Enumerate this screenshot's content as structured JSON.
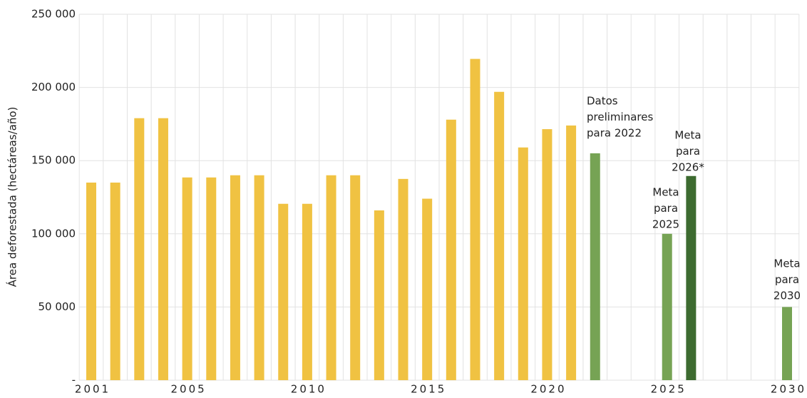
{
  "chart_data": {
    "type": "bar",
    "y_label": "Área deforestada (hectáreas/año)",
    "categories": [
      "2001",
      null,
      null,
      null,
      "2005",
      null,
      null,
      null,
      null,
      "2010",
      null,
      null,
      null,
      null,
      "2015",
      null,
      null,
      null,
      null,
      "2020",
      null,
      null,
      null,
      null,
      "2025",
      null,
      null,
      null,
      null,
      "2030"
    ],
    "values": [
      135000,
      135000,
      179000,
      179000,
      138500,
      138500,
      140000,
      140000,
      120500,
      120500,
      140000,
      140000,
      116000,
      137500,
      124000,
      178000,
      219500,
      197000,
      159000,
      171500,
      174000,
      155000,
      null,
      null,
      100000,
      139500,
      null,
      null,
      null,
      50000
    ],
    "colors": [
      "#f0c242",
      "#f0c242",
      "#f0c242",
      "#f0c242",
      "#f0c242",
      "#f0c242",
      "#f0c242",
      "#f0c242",
      "#f0c242",
      "#f0c242",
      "#f0c242",
      "#f0c242",
      "#f0c242",
      "#f0c242",
      "#f0c242",
      "#f0c242",
      "#f0c242",
      "#f0c242",
      "#f0c242",
      "#f0c242",
      "#f0c242",
      "#76a354",
      null,
      null,
      "#76a354",
      "#3d6b30",
      null,
      null,
      null,
      "#76a354"
    ],
    "ylim": [
      0,
      250000
    ],
    "yticks": [
      {
        "value": 0,
        "label": "-"
      },
      {
        "value": 50000,
        "label": "50 000"
      },
      {
        "value": 100000,
        "label": "100 000"
      },
      {
        "value": 150000,
        "label": "150 000"
      },
      {
        "value": 200000,
        "label": "200 000"
      },
      {
        "value": 250000,
        "label": "250 000"
      }
    ],
    "grid": true,
    "annotations": [
      {
        "lines": [
          "Datos",
          "preliminares",
          "para 2022"
        ]
      },
      {
        "lines": [
          "Meta",
          "para",
          "2025"
        ]
      },
      {
        "lines": [
          "Meta",
          "para",
          "2026*"
        ]
      },
      {
        "lines": [
          "Meta",
          "para",
          "2030"
        ]
      }
    ]
  }
}
